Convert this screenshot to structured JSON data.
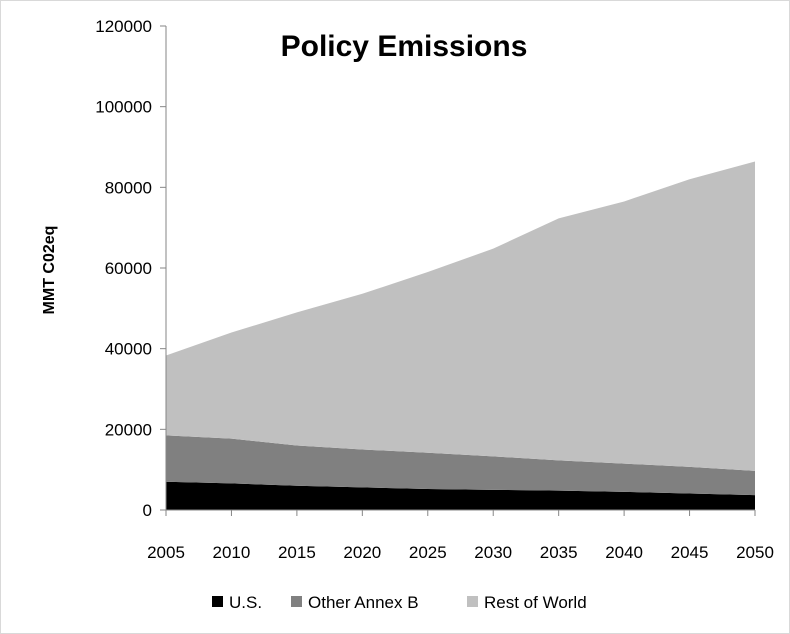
{
  "chart_data": {
    "type": "area",
    "stacked": true,
    "title": "Policy Emissions",
    "xlabel": "",
    "ylabel": "MMT C02eq",
    "x": [
      2005,
      2010,
      2015,
      2020,
      2025,
      2030,
      2035,
      2040,
      2045,
      2050
    ],
    "ylim": [
      0,
      120000
    ],
    "yticks": [
      0,
      20000,
      40000,
      60000,
      80000,
      100000,
      120000
    ],
    "grid": false,
    "legend_position": "bottom",
    "series": [
      {
        "name": "U.S.",
        "color": "#000000",
        "values": [
          7000,
          6600,
          6000,
          5600,
          5200,
          5000,
          4800,
          4500,
          4100,
          3700
        ]
      },
      {
        "name": "Other Annex B",
        "color": "#808080",
        "values": [
          11500,
          11100,
          10000,
          9400,
          9000,
          8300,
          7500,
          7000,
          6600,
          6000
        ]
      },
      {
        "name": "Rest of World",
        "color": "#c0c0c0",
        "values": [
          19800,
          26300,
          33000,
          38600,
          44800,
          51500,
          60000,
          65000,
          71300,
          76700
        ]
      }
    ]
  }
}
